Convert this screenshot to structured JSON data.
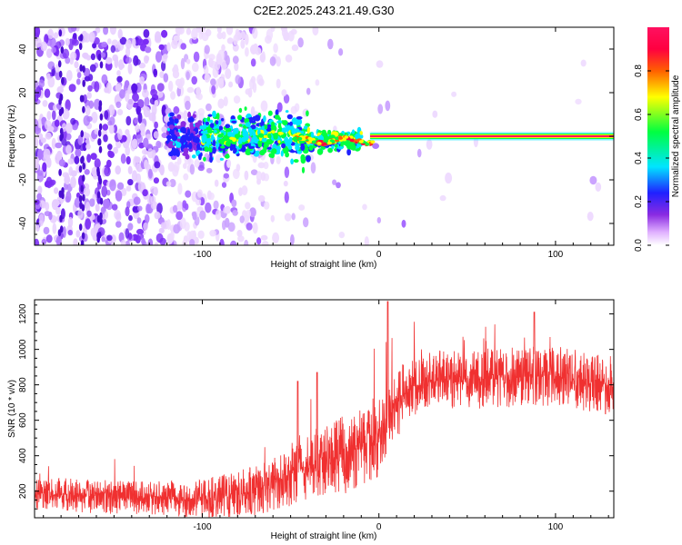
{
  "figure_title": "C2E2.2025.243.21.49.G30",
  "chart_data": [
    {
      "type": "heatmap",
      "name": "spectrogram",
      "xlabel": "Height of straight line (km)",
      "ylabel": "Frequency (Hz)",
      "xlim": [
        -195,
        133
      ],
      "ylim": [
        -50,
        50
      ],
      "xticks": [
        -100,
        0,
        100
      ],
      "xtick_labels": [
        "-100",
        "0",
        "100"
      ],
      "yticks": [
        -40,
        -20,
        0,
        20,
        40
      ],
      "ytick_labels": [
        "-40",
        "-20",
        "0",
        "20",
        "40"
      ],
      "colorbar": {
        "label": "Normalized spectral amplitude",
        "range": [
          0,
          1
        ],
        "ticks": [
          0.0,
          0.2,
          0.4,
          0.6,
          0.8
        ],
        "tick_labels": [
          "0.0",
          "0.2",
          "0.4",
          "0.6",
          "0.8"
        ],
        "colormap": [
          "#ffffff",
          "#e0b0ff",
          "#8a2be2",
          "#2020ff",
          "#00e5ff",
          "#00ff40",
          "#ffff00",
          "#ff6000",
          "#ff0040",
          "#ff1060"
        ]
      },
      "description_values": {
        "carrier_frequency_hz": 0,
        "strong_tone_start_km": -5,
        "noise_fade_km": -50
      }
    },
    {
      "type": "line",
      "name": "snr",
      "color": "#f03030",
      "xlabel": "Height of straight line (km)",
      "ylabel": "SNR (10 * v/v)",
      "xlim": [
        -195,
        133
      ],
      "ylim": [
        50,
        1280
      ],
      "xticks": [
        -100,
        0,
        100
      ],
      "xtick_labels": [
        "-100",
        "0",
        "100"
      ],
      "yticks": [
        200,
        400,
        600,
        800,
        1000,
        1200
      ],
      "ytick_labels": [
        "200",
        "400",
        "600",
        "800",
        "1000",
        "1200"
      ],
      "trend": {
        "x": [
          -195,
          -170,
          -150,
          -120,
          -100,
          -80,
          -60,
          -45,
          -30,
          -15,
          0,
          5,
          10,
          20,
          30,
          50,
          70,
          90,
          100,
          110,
          120,
          133
        ],
        "y": [
          190,
          175,
          165,
          160,
          155,
          175,
          240,
          320,
          380,
          420,
          520,
          620,
          700,
          790,
          820,
          830,
          840,
          850,
          850,
          840,
          815,
          790
        ]
      },
      "peaks": [
        {
          "x": 5,
          "y": 1270
        },
        {
          "x": 88,
          "y": 1210
        },
        {
          "x": -35,
          "y": 870
        },
        {
          "x": -46,
          "y": 820
        }
      ]
    }
  ]
}
